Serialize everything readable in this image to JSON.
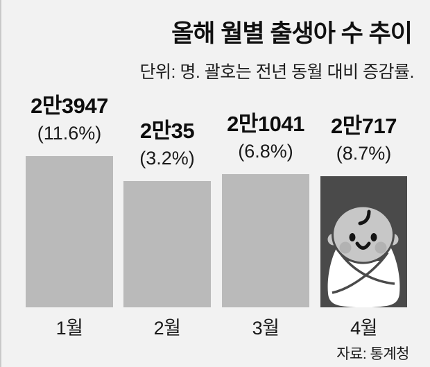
{
  "page": {
    "background_color": "#f2f2f2",
    "edge_line_color": "#c9c9c9"
  },
  "chart_data": {
    "type": "bar",
    "title": "올해 월별 출생아 수 추이",
    "subtitle": "단위: 명. 괄호는 전년 동월 대비 증감률.",
    "source": "자료: 통계청",
    "unit": "명",
    "categories": [
      "1월",
      "2월",
      "3월",
      "4월"
    ],
    "values": [
      23947,
      20035,
      21041,
      20717
    ],
    "value_labels": [
      "2만3947",
      "2만35",
      "2만1041",
      "2만717"
    ],
    "yoy_labels": [
      "(11.6%)",
      "(3.2%)",
      "(6.8%)",
      "(8.7%)"
    ],
    "yoy_change_pct": [
      11.6,
      3.2,
      6.8,
      8.7
    ],
    "ylim": [
      0,
      23947
    ],
    "grid": false,
    "legend": "none",
    "bar_color": "#bababa",
    "highlight_index": 3,
    "highlight_bar_color": "#4a4a4a",
    "highlight_illustration": "swaddled-baby",
    "baby_colors": {
      "skin": "#c7c7c7",
      "cheek": "#b2b2b2",
      "features": "#141414",
      "swaddle": "#ffffff",
      "outline": "#4a4a4a"
    }
  }
}
